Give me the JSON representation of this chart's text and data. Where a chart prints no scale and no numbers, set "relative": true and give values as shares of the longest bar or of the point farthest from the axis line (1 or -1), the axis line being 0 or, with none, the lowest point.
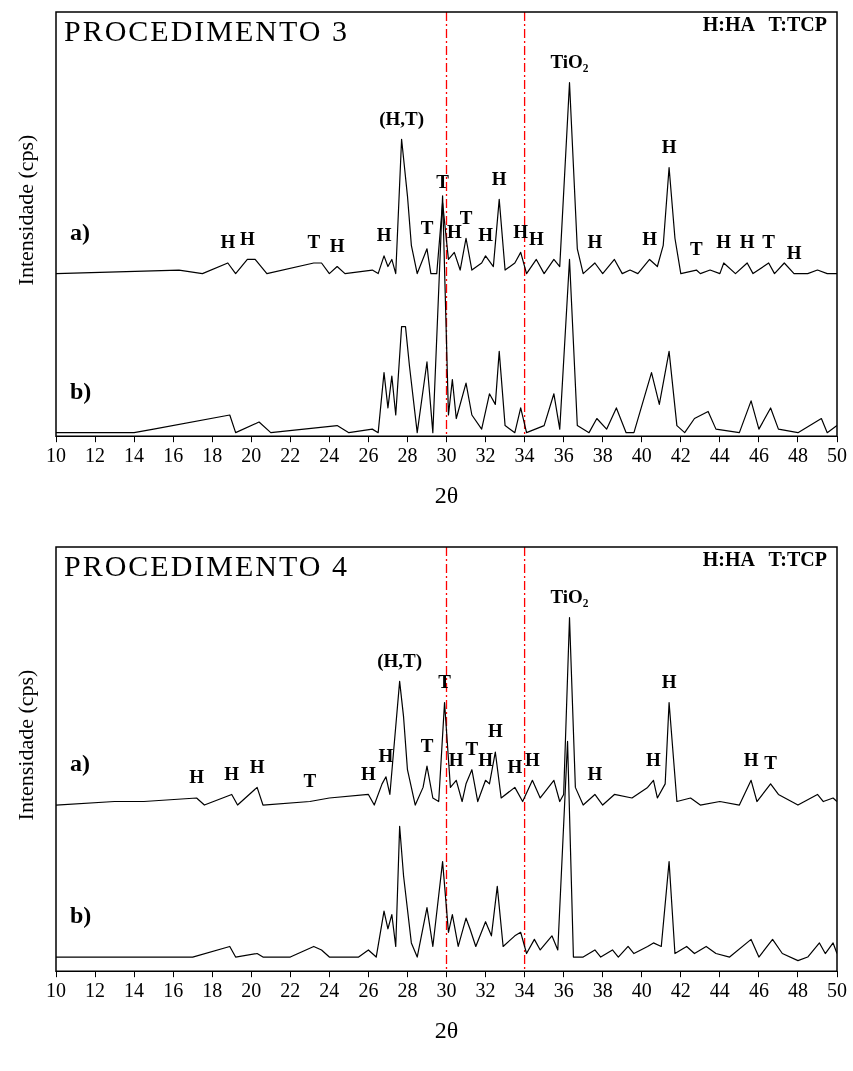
{
  "chart_data": [
    {
      "type": "line",
      "title": "PROCEDIMENTO 3",
      "xlabel": "2θ",
      "ylabel": "Intensidade (cps)",
      "relative": true,
      "xlim": [
        10,
        50
      ],
      "xticks": [
        10,
        12,
        14,
        16,
        18,
        20,
        22,
        24,
        26,
        28,
        30,
        32,
        34,
        36,
        38,
        40,
        42,
        44,
        46,
        48,
        50
      ],
      "series": [
        {
          "name": "a)",
          "color": "#000000",
          "x": [
            10,
            16.3,
            17.5,
            18.8,
            19.2,
            19.8,
            20.2,
            20.8,
            23.2,
            23.6,
            24,
            24.4,
            24.8,
            26.2,
            26.5,
            26.8,
            27,
            27.2,
            27.4,
            27.7,
            28,
            28.2,
            28.5,
            29,
            29.2,
            29.5,
            29.8,
            30.1,
            30.4,
            30.7,
            31,
            31.3,
            31.8,
            32,
            32.4,
            32.7,
            33,
            33.5,
            33.8,
            34.1,
            34.6,
            35,
            35.5,
            35.8,
            36.3,
            36.7,
            37,
            37.6,
            38,
            38.6,
            39,
            39.4,
            39.8,
            40.4,
            40.8,
            41.1,
            41.4,
            41.7,
            42,
            42.8,
            43,
            43.5,
            44,
            44.2,
            44.8,
            45.4,
            45.7,
            46.5,
            46.8,
            47.3,
            47.8,
            48.5,
            49,
            49.5,
            50
          ],
          "values": [
            0.46,
            0.47,
            0.46,
            0.49,
            0.46,
            0.5,
            0.5,
            0.46,
            0.49,
            0.49,
            0.46,
            0.48,
            0.46,
            0.47,
            0.46,
            0.51,
            0.48,
            0.5,
            0.46,
            0.84,
            0.68,
            0.54,
            0.46,
            0.53,
            0.46,
            0.46,
            0.66,
            0.5,
            0.52,
            0.47,
            0.56,
            0.47,
            0.49,
            0.51,
            0.48,
            0.67,
            0.47,
            0.49,
            0.52,
            0.46,
            0.5,
            0.46,
            0.5,
            0.48,
            1,
            0.53,
            0.46,
            0.49,
            0.46,
            0.5,
            0.46,
            0.47,
            0.46,
            0.5,
            0.48,
            0.54,
            0.76,
            0.56,
            0.46,
            0.47,
            0.46,
            0.47,
            0.46,
            0.49,
            0.46,
            0.49,
            0.46,
            0.49,
            0.46,
            0.49,
            0.46,
            0.46,
            0.47,
            0.46,
            0.46
          ]
        },
        {
          "name": "b)",
          "color": "#000000",
          "x": [
            10,
            14,
            15,
            18.9,
            19.2,
            20.4,
            21,
            24.4,
            25,
            26.2,
            26.5,
            26.8,
            27,
            27.2,
            27.4,
            27.7,
            27.9,
            28.1,
            28.5,
            29,
            29.3,
            29.8,
            30.1,
            30.3,
            30.5,
            31,
            31.3,
            31.8,
            32.2,
            32.5,
            32.7,
            33,
            33.5,
            33.8,
            34.1,
            35,
            35.5,
            35.8,
            36.3,
            36.7,
            37.3,
            37.7,
            38.2,
            38.7,
            39.2,
            39.6,
            40.5,
            40.9,
            41.4,
            41.8,
            42.2,
            42.7,
            43.4,
            43.8,
            45,
            45.6,
            46,
            46.6,
            47,
            48,
            49.2,
            49.5,
            50
          ],
          "values": [
            0.01,
            0.01,
            0.02,
            0.06,
            0.01,
            0.04,
            0.01,
            0.03,
            0.01,
            0.02,
            0.01,
            0.18,
            0.08,
            0.17,
            0.06,
            0.31,
            0.31,
            0.2,
            0.01,
            0.21,
            0.01,
            0.68,
            0.06,
            0.16,
            0.05,
            0.15,
            0.06,
            0.02,
            0.12,
            0.09,
            0.24,
            0.03,
            0.01,
            0.08,
            0.01,
            0.03,
            0.12,
            0.02,
            0.5,
            0.03,
            0.01,
            0.05,
            0.02,
            0.08,
            0.01,
            0.01,
            0.18,
            0.09,
            0.24,
            0.03,
            0.01,
            0.05,
            0.07,
            0.02,
            0.01,
            0.1,
            0.02,
            0.08,
            0.02,
            0.01,
            0.05,
            0.01,
            0.03
          ]
        }
      ],
      "ref_lines": [
        {
          "axis": "x",
          "value": 30,
          "color": "#ff0000",
          "line_style": "dashed"
        },
        {
          "axis": "x",
          "value": 34,
          "color": "#ff0000",
          "line_style": "dashed"
        }
      ],
      "annotations": [
        "H:HA   T:TCP",
        {
          "text": "H",
          "x": 18.8,
          "y": 0.49
        },
        {
          "text": "H",
          "x": 19.8,
          "y": 0.5
        },
        {
          "text": "T",
          "x": 23.2,
          "y": 0.49
        },
        {
          "text": "H",
          "x": 24.4,
          "y": 0.48
        },
        {
          "text": "H",
          "x": 26.8,
          "y": 0.51
        },
        {
          "text": "(H,T)",
          "x": 27.7,
          "y": 0.84
        },
        {
          "text": "T",
          "x": 29,
          "y": 0.53
        },
        {
          "text": "T",
          "x": 29.8,
          "y": 0.66
        },
        {
          "text": "H",
          "x": 30.4,
          "y": 0.52
        },
        {
          "text": "T",
          "x": 31,
          "y": 0.56
        },
        {
          "text": "H",
          "x": 32,
          "y": 0.51
        },
        {
          "text": "H",
          "x": 32.7,
          "y": 0.67
        },
        {
          "text": "H",
          "x": 33.8,
          "y": 0.52
        },
        {
          "text": "H",
          "x": 34.6,
          "y": 0.5
        },
        {
          "text": "TiO₂",
          "x": 36.3,
          "y": 1
        },
        {
          "text": "H",
          "x": 37.6,
          "y": 0.49
        },
        {
          "text": "H",
          "x": 40.4,
          "y": 0.5
        },
        {
          "text": "H",
          "x": 41.4,
          "y": 0.76
        },
        {
          "text": "T",
          "x": 42.8,
          "y": 0.47
        },
        {
          "text": "H",
          "x": 44.2,
          "y": 0.49
        },
        {
          "text": "H",
          "x": 45.4,
          "y": 0.49
        },
        {
          "text": "T",
          "x": 46.5,
          "y": 0.49
        },
        {
          "text": "H",
          "x": 47.8,
          "y": 0.46
        }
      ]
    },
    {
      "type": "line",
      "title": "PROCEDIMENTO 4",
      "xlabel": "2θ",
      "ylabel": "Intensidade (cps)",
      "relative": true,
      "xlim": [
        10,
        50
      ],
      "xticks": [
        10,
        12,
        14,
        16,
        18,
        20,
        22,
        24,
        26,
        28,
        30,
        32,
        34,
        36,
        38,
        40,
        42,
        44,
        46,
        48,
        50
      ],
      "series": [
        {
          "name": "a)",
          "color": "#000000",
          "x": [
            10,
            13,
            14.5,
            17.2,
            17.6,
            19,
            19.3,
            20.3,
            20.6,
            23,
            24,
            26,
            26.3,
            26.7,
            26.9,
            27.1,
            27.6,
            27.8,
            28,
            28.4,
            28.8,
            29,
            29.3,
            29.6,
            29.9,
            30.2,
            30.5,
            30.8,
            31,
            31.3,
            31.6,
            32,
            32.2,
            32.5,
            32.8,
            33.5,
            33.9,
            34.4,
            34.8,
            35.5,
            35.8,
            36,
            36.3,
            36.6,
            37,
            37.6,
            38,
            38.6,
            39.5,
            40.3,
            40.6,
            40.8,
            41.2,
            41.4,
            41.8,
            42.5,
            43,
            44,
            45,
            45.6,
            45.9,
            46.6,
            47,
            48,
            49,
            49.3,
            49.8,
            50
          ],
          "values": [
            0.47,
            0.48,
            0.48,
            0.49,
            0.47,
            0.5,
            0.47,
            0.52,
            0.47,
            0.48,
            0.49,
            0.5,
            0.47,
            0.53,
            0.55,
            0.5,
            0.82,
            0.72,
            0.57,
            0.47,
            0.52,
            0.58,
            0.49,
            0.48,
            0.76,
            0.52,
            0.54,
            0.48,
            0.53,
            0.57,
            0.48,
            0.54,
            0.53,
            0.62,
            0.49,
            0.52,
            0.48,
            0.54,
            0.49,
            0.54,
            0.48,
            0.5,
            1,
            0.52,
            0.47,
            0.5,
            0.47,
            0.5,
            0.49,
            0.52,
            0.54,
            0.49,
            0.53,
            0.76,
            0.48,
            0.49,
            0.47,
            0.48,
            0.47,
            0.54,
            0.48,
            0.53,
            0.5,
            0.47,
            0.5,
            0.48,
            0.49,
            0.48
          ]
        },
        {
          "name": "b)",
          "color": "#000000",
          "x": [
            10,
            13.8,
            17,
            18.9,
            19.2,
            20.3,
            20.6,
            22,
            23.2,
            23.6,
            24,
            25.5,
            26,
            26.4,
            26.8,
            27,
            27.2,
            27.4,
            27.6,
            27.8,
            28.2,
            28.5,
            29,
            29.3,
            29.8,
            30.1,
            30.3,
            30.6,
            31,
            31.2,
            31.5,
            32,
            32.3,
            32.6,
            32.9,
            33.5,
            33.8,
            34.1,
            34.5,
            34.8,
            35.4,
            35.7,
            36.2,
            36.5,
            37,
            37.6,
            37.9,
            38.5,
            38.8,
            39.3,
            39.6,
            40.3,
            40.6,
            41,
            41.4,
            41.7,
            42.3,
            42.7,
            43.3,
            43.8,
            44.5,
            45.6,
            46,
            46.7,
            47.2,
            48,
            48.5,
            49.1,
            49.4,
            49.8,
            50
          ],
          "values": [
            0.04,
            0.04,
            0.04,
            0.07,
            0.04,
            0.05,
            0.04,
            0.04,
            0.07,
            0.06,
            0.04,
            0.04,
            0.06,
            0.04,
            0.17,
            0.12,
            0.16,
            0.07,
            0.41,
            0.27,
            0.08,
            0.04,
            0.18,
            0.07,
            0.31,
            0.11,
            0.16,
            0.07,
            0.15,
            0.12,
            0.07,
            0.14,
            0.1,
            0.24,
            0.07,
            0.1,
            0.11,
            0.05,
            0.09,
            0.06,
            0.1,
            0.06,
            0.65,
            0.04,
            0.04,
            0.06,
            0.04,
            0.06,
            0.04,
            0.07,
            0.05,
            0.07,
            0.08,
            0.07,
            0.31,
            0.05,
            0.07,
            0.05,
            0.07,
            0.05,
            0.04,
            0.09,
            0.04,
            0.09,
            0.05,
            0.03,
            0.04,
            0.08,
            0.05,
            0.08,
            0.05
          ]
        }
      ],
      "ref_lines": [
        {
          "axis": "x",
          "value": 30,
          "color": "#ff0000",
          "line_style": "dashed"
        },
        {
          "axis": "x",
          "value": 34,
          "color": "#ff0000",
          "line_style": "dashed"
        }
      ],
      "annotations": [
        "H:HA   T:TCP",
        {
          "text": "H",
          "x": 17.2,
          "y": 0.49
        },
        {
          "text": "H",
          "x": 19,
          "y": 0.5
        },
        {
          "text": "H",
          "x": 20.3,
          "y": 0.52
        },
        {
          "text": "T",
          "x": 23,
          "y": 0.48
        },
        {
          "text": "H",
          "x": 26,
          "y": 0.5
        },
        {
          "text": "H",
          "x": 26.9,
          "y": 0.55
        },
        {
          "text": "(H,T)",
          "x": 27.6,
          "y": 0.82
        },
        {
          "text": "T",
          "x": 29,
          "y": 0.58
        },
        {
          "text": "T",
          "x": 29.9,
          "y": 0.76
        },
        {
          "text": "H",
          "x": 30.5,
          "y": 0.54
        },
        {
          "text": "T",
          "x": 31.3,
          "y": 0.57
        },
        {
          "text": "H",
          "x": 32,
          "y": 0.54
        },
        {
          "text": "H",
          "x": 32.5,
          "y": 0.62
        },
        {
          "text": "H",
          "x": 33.5,
          "y": 0.52
        },
        {
          "text": "H",
          "x": 34.4,
          "y": 0.54
        },
        {
          "text": "TiO₂",
          "x": 36.3,
          "y": 1
        },
        {
          "text": "H",
          "x": 37.6,
          "y": 0.5
        },
        {
          "text": "H",
          "x": 40.6,
          "y": 0.54
        },
        {
          "text": "H",
          "x": 41.4,
          "y": 0.76
        },
        {
          "text": "H",
          "x": 45.6,
          "y": 0.54
        },
        {
          "text": "T",
          "x": 46.6,
          "y": 0.53
        }
      ]
    }
  ]
}
